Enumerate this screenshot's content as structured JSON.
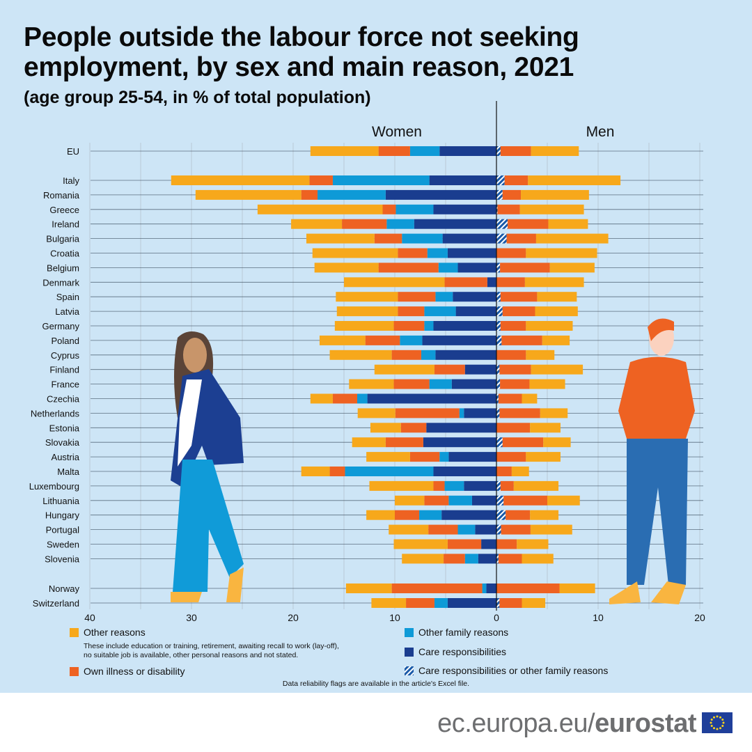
{
  "title": "People outside the labour force not seeking employment, by sex and main reason, 2021",
  "subtitle": "(age group 25-54, in % of total population)",
  "footer": {
    "domain": "ec.europa.eu/",
    "brand": "eurostat"
  },
  "reliability_note": "Data reliability flags are available in the article's Excel file.",
  "legend": {
    "other": "Other reasons",
    "other_note_1": "These include education or training, retirement, awaiting recall to work (lay-off),",
    "other_note_2": "no suitable job is available, other personal reasons and not stated.",
    "illness": "Own illness or disability",
    "family": "Other family reasons",
    "care": "Care responsibilities",
    "care_or_family": "Care responsibilities or other family reasons"
  },
  "colors": {
    "other": "#f7a81b",
    "illness": "#ee6222",
    "family": "#0e9ad7",
    "care": "#1a3d8f",
    "background": "#cde5f6"
  },
  "chart_data": {
    "type": "bar",
    "orientation": "horizontal-diverging-stacked",
    "panel_labels": {
      "women": "Women",
      "men": "Men"
    },
    "x_ticks_women": [
      40,
      30,
      20,
      10,
      0
    ],
    "x_ticks_men": [
      10,
      20
    ],
    "xlim_women": [
      0,
      40
    ],
    "xlim_men": [
      0,
      20
    ],
    "grid": true,
    "countries": [
      "EU",
      "Italy",
      "Romania",
      "Greece",
      "Ireland",
      "Bulgaria",
      "Croatia",
      "Belgium",
      "Denmark",
      "Spain",
      "Latvia",
      "Germany",
      "Poland",
      "Cyprus",
      "Finland",
      "France",
      "Czechia",
      "Netherlands",
      "Estonia",
      "Slovakia",
      "Austria",
      "Malta",
      "Luxembourg",
      "Lithuania",
      "Hungary",
      "Portugal",
      "Sweden",
      "Slovenia",
      "Norway",
      "Switzerland"
    ],
    "women": {
      "care": [
        5.6,
        6.6,
        10.9,
        6.2,
        8.1,
        5.3,
        4.8,
        3.8,
        0.9,
        4.3,
        4.0,
        6.2,
        7.3,
        6.0,
        3.1,
        4.4,
        12.7,
        3.2,
        6.9,
        7.2,
        4.7,
        6.2,
        3.2,
        2.4,
        5.4,
        2.1,
        1.5,
        1.8,
        1.0,
        4.8
      ],
      "family": [
        2.9,
        9.5,
        6.7,
        3.7,
        2.7,
        4.0,
        2.0,
        1.9,
        0,
        1.7,
        3.1,
        0.9,
        2.2,
        1.4,
        0,
        2.2,
        1.0,
        0.45,
        0,
        0,
        0.9,
        8.7,
        1.9,
        2.3,
        2.2,
        1.7,
        0,
        1.3,
        0.4,
        1.3
      ],
      "illness": [
        3.1,
        2.3,
        1.6,
        1.3,
        4.4,
        2.7,
        2.9,
        5.9,
        4.2,
        3.7,
        2.6,
        3.0,
        3.4,
        2.9,
        3.0,
        3.5,
        2.4,
        6.3,
        2.5,
        3.7,
        2.9,
        1.5,
        1.1,
        2.4,
        2.4,
        2.9,
        3.3,
        2.1,
        8.9,
        2.8
      ],
      "other": [
        6.7,
        13.6,
        10.4,
        12.3,
        5.0,
        6.7,
        8.4,
        6.3,
        9.9,
        6.1,
        6.0,
        5.8,
        4.5,
        6.1,
        5.9,
        4.4,
        2.2,
        3.7,
        3.0,
        3.3,
        4.3,
        2.8,
        6.3,
        2.9,
        2.8,
        3.9,
        5.3,
        4.1,
        4.5,
        3.4
      ]
    },
    "men": {
      "care_or_family": [
        0.4,
        0.8,
        0.6,
        0.1,
        1.1,
        1.0,
        0,
        0.35,
        0,
        0.4,
        0.6,
        0.4,
        0.5,
        0,
        0.3,
        0.35,
        0.2,
        0.3,
        0,
        0.6,
        0,
        0,
        0.4,
        0.7,
        0.9,
        0.45,
        0,
        0.2,
        0,
        0.3
      ],
      "illness": [
        3.0,
        2.3,
        1.8,
        2.2,
        4.0,
        2.9,
        2.9,
        4.9,
        2.8,
        3.6,
        3.2,
        2.5,
        4.0,
        2.9,
        3.1,
        2.9,
        2.3,
        4.0,
        3.3,
        4.0,
        2.9,
        1.5,
        1.3,
        4.3,
        2.4,
        2.9,
        2.0,
        2.3,
        6.2,
        2.2
      ],
      "other": [
        4.7,
        9.1,
        6.7,
        6.3,
        3.9,
        7.1,
        7.0,
        4.4,
        5.8,
        3.9,
        4.2,
        4.6,
        2.7,
        2.8,
        5.1,
        3.5,
        1.5,
        2.7,
        3.0,
        2.7,
        3.4,
        1.7,
        4.4,
        3.2,
        2.8,
        4.1,
        3.1,
        3.1,
        3.5,
        2.3
      ]
    }
  }
}
